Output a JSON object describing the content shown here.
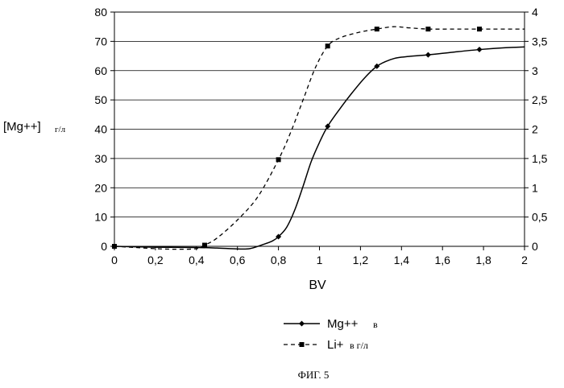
{
  "chart_data": {
    "type": "line",
    "caption": "ФИГ. 5",
    "xlabel": "BV",
    "ylabel": {
      "main": "[Mg++]",
      "unit": "г/л"
    },
    "xlim": [
      0,
      2
    ],
    "x_ticks": [
      "0",
      "0,2",
      "0,4",
      "0,6",
      "0,8",
      "1",
      "1,2",
      "1,4",
      "1,6",
      "1,8",
      "2"
    ],
    "ylim_left": [
      0,
      80
    ],
    "y_ticks_left": [
      "0",
      "10",
      "20",
      "30",
      "40",
      "50",
      "60",
      "70",
      "80"
    ],
    "ylim_right": [
      0,
      4
    ],
    "y_ticks_right": [
      "0",
      "0,5",
      "1",
      "1,5",
      "2",
      "2,5",
      "3",
      "3,5",
      "4"
    ],
    "grid": "horizontal",
    "legend_position": "bottom-center",
    "series": [
      {
        "name": "Mg++",
        "name_suffix": "в",
        "axis": "left",
        "line_style": "solid",
        "marker": "diamond",
        "color": "#000000",
        "curve": [
          [
            0,
            0
          ],
          [
            0.2,
            -0.3
          ],
          [
            0.4,
            -0.4
          ],
          [
            0.5,
            -0.6
          ],
          [
            0.6,
            -0.9
          ],
          [
            0.66,
            -0.8
          ],
          [
            0.72,
            0.5
          ],
          [
            0.77,
            1.8
          ],
          [
            0.8,
            3.3
          ],
          [
            0.84,
            6.5
          ],
          [
            0.88,
            12.5
          ],
          [
            0.92,
            20.5
          ],
          [
            0.96,
            29
          ],
          [
            1.0,
            35.5
          ],
          [
            1.04,
            41
          ],
          [
            1.1,
            47
          ],
          [
            1.16,
            52.5
          ],
          [
            1.22,
            57.5
          ],
          [
            1.28,
            61.5
          ],
          [
            1.34,
            63.6
          ],
          [
            1.4,
            64.6
          ],
          [
            1.53,
            65.4
          ],
          [
            1.65,
            66.3
          ],
          [
            1.78,
            67.2
          ],
          [
            1.9,
            67.8
          ],
          [
            2.0,
            68.1
          ]
        ],
        "markers": [
          [
            0,
            0
          ],
          [
            0.8,
            3.3
          ],
          [
            1.04,
            41
          ],
          [
            1.28,
            61.5
          ],
          [
            1.53,
            65.4
          ],
          [
            1.78,
            67.2
          ]
        ]
      },
      {
        "name": "Li+",
        "name_suffix": "в г/л",
        "axis": "right",
        "line_style": "dashed",
        "marker": "square",
        "color": "#000000",
        "curve": [
          [
            0,
            0
          ],
          [
            0.1,
            -0.02
          ],
          [
            0.2,
            -0.04
          ],
          [
            0.3,
            -0.05
          ],
          [
            0.4,
            -0.04
          ],
          [
            0.44,
            0.02
          ],
          [
            0.5,
            0.14
          ],
          [
            0.6,
            0.45
          ],
          [
            0.7,
            0.85
          ],
          [
            0.8,
            1.48
          ],
          [
            0.86,
            1.95
          ],
          [
            0.92,
            2.5
          ],
          [
            0.98,
            3.05
          ],
          [
            1.04,
            3.42
          ],
          [
            1.1,
            3.56
          ],
          [
            1.2,
            3.66
          ],
          [
            1.28,
            3.71
          ],
          [
            1.36,
            3.75
          ],
          [
            1.44,
            3.73
          ],
          [
            1.53,
            3.71
          ],
          [
            1.65,
            3.71
          ],
          [
            1.78,
            3.71
          ],
          [
            2.0,
            3.71
          ]
        ],
        "markers": [
          [
            0,
            0
          ],
          [
            0.44,
            0.02
          ],
          [
            0.8,
            1.48
          ],
          [
            1.04,
            3.42
          ],
          [
            1.28,
            3.71
          ],
          [
            1.53,
            3.71
          ],
          [
            1.78,
            3.71
          ]
        ]
      }
    ]
  }
}
